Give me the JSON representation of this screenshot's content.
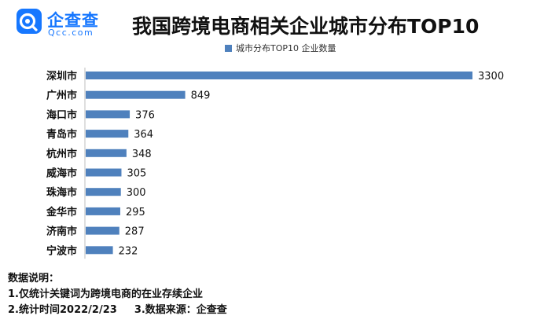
{
  "logo": {
    "cn": "企查查",
    "en": "Qcc.com"
  },
  "title": "我国跨境电商相关企业城市分布TOP10",
  "legend": {
    "label": "城市分布TOP10 企业数量",
    "color": "#4f81bd"
  },
  "chart_data": {
    "type": "bar",
    "orientation": "horizontal",
    "title": "我国跨境电商相关企业城市分布TOP10",
    "categories": [
      "深圳市",
      "广州市",
      "海口市",
      "青岛市",
      "杭州市",
      "威海市",
      "珠海市",
      "金华市",
      "济南市",
      "宁波市"
    ],
    "series": [
      {
        "name": "城市分布TOP10 企业数量",
        "values": [
          3300,
          849,
          376,
          364,
          348,
          305,
          300,
          295,
          287,
          232
        ],
        "color": "#4f81bd"
      }
    ],
    "xlim": [
      0,
      3300
    ],
    "grid": false,
    "legend_position": "top"
  },
  "notes": {
    "heading": "数据说明：",
    "line1": "1.仅统计关键词为跨境电商的在业存续企业",
    "line2a": "2.统计时间2022/2/23",
    "line2b": "3.数据来源：企查查"
  }
}
